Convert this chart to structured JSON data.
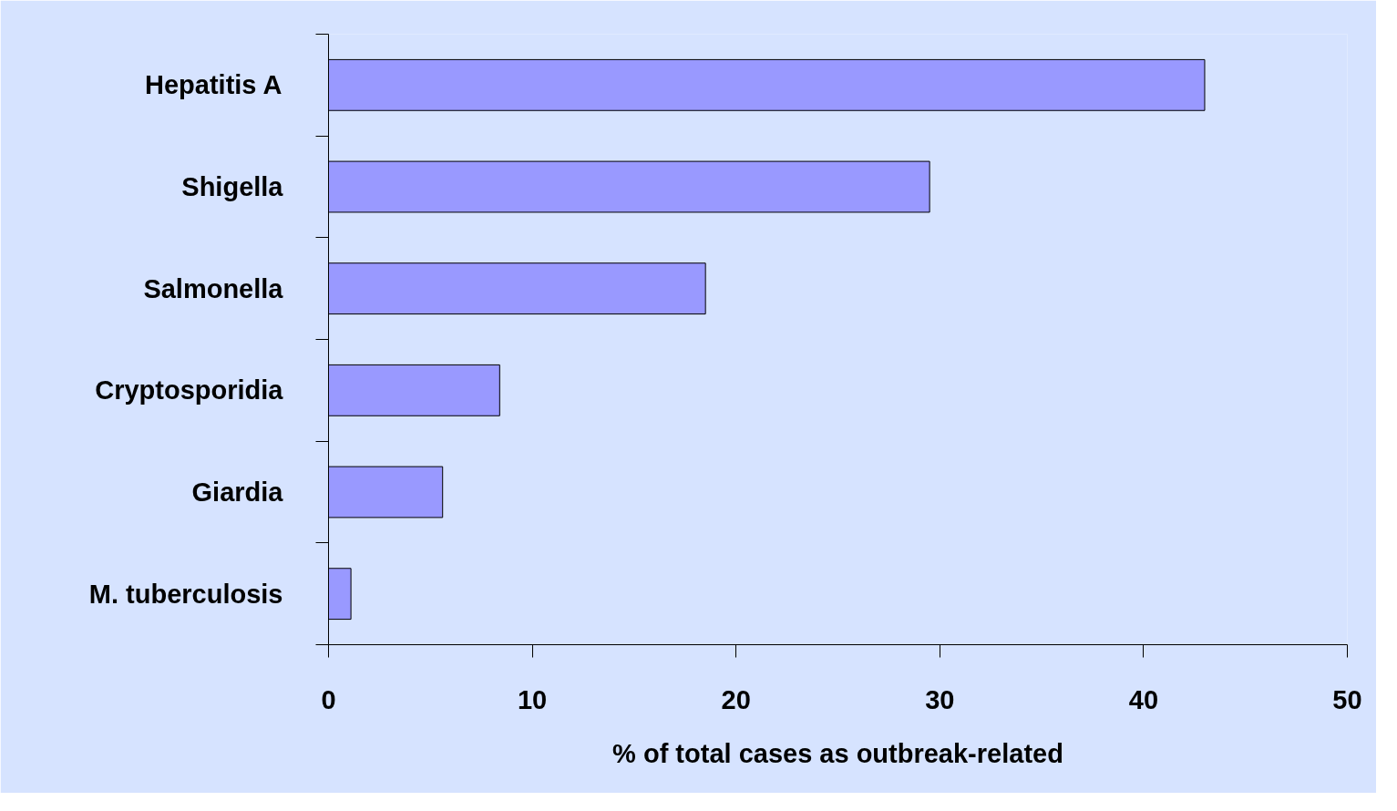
{
  "chart_data": {
    "type": "bar",
    "orientation": "horizontal",
    "xlabel": "% of total cases as outbreak-related",
    "categories": [
      "Hepatitis A",
      "Shigella",
      "Salmonella",
      "Cryptosporidia",
      "Giardia",
      "M. tuberculosis"
    ],
    "values": [
      43.0,
      29.5,
      18.5,
      8.4,
      5.6,
      1.1
    ],
    "color": "#9999ff",
    "xlim": [
      0,
      50
    ],
    "xticks": [
      0,
      10,
      20,
      30,
      40,
      50
    ],
    "grid": false
  }
}
